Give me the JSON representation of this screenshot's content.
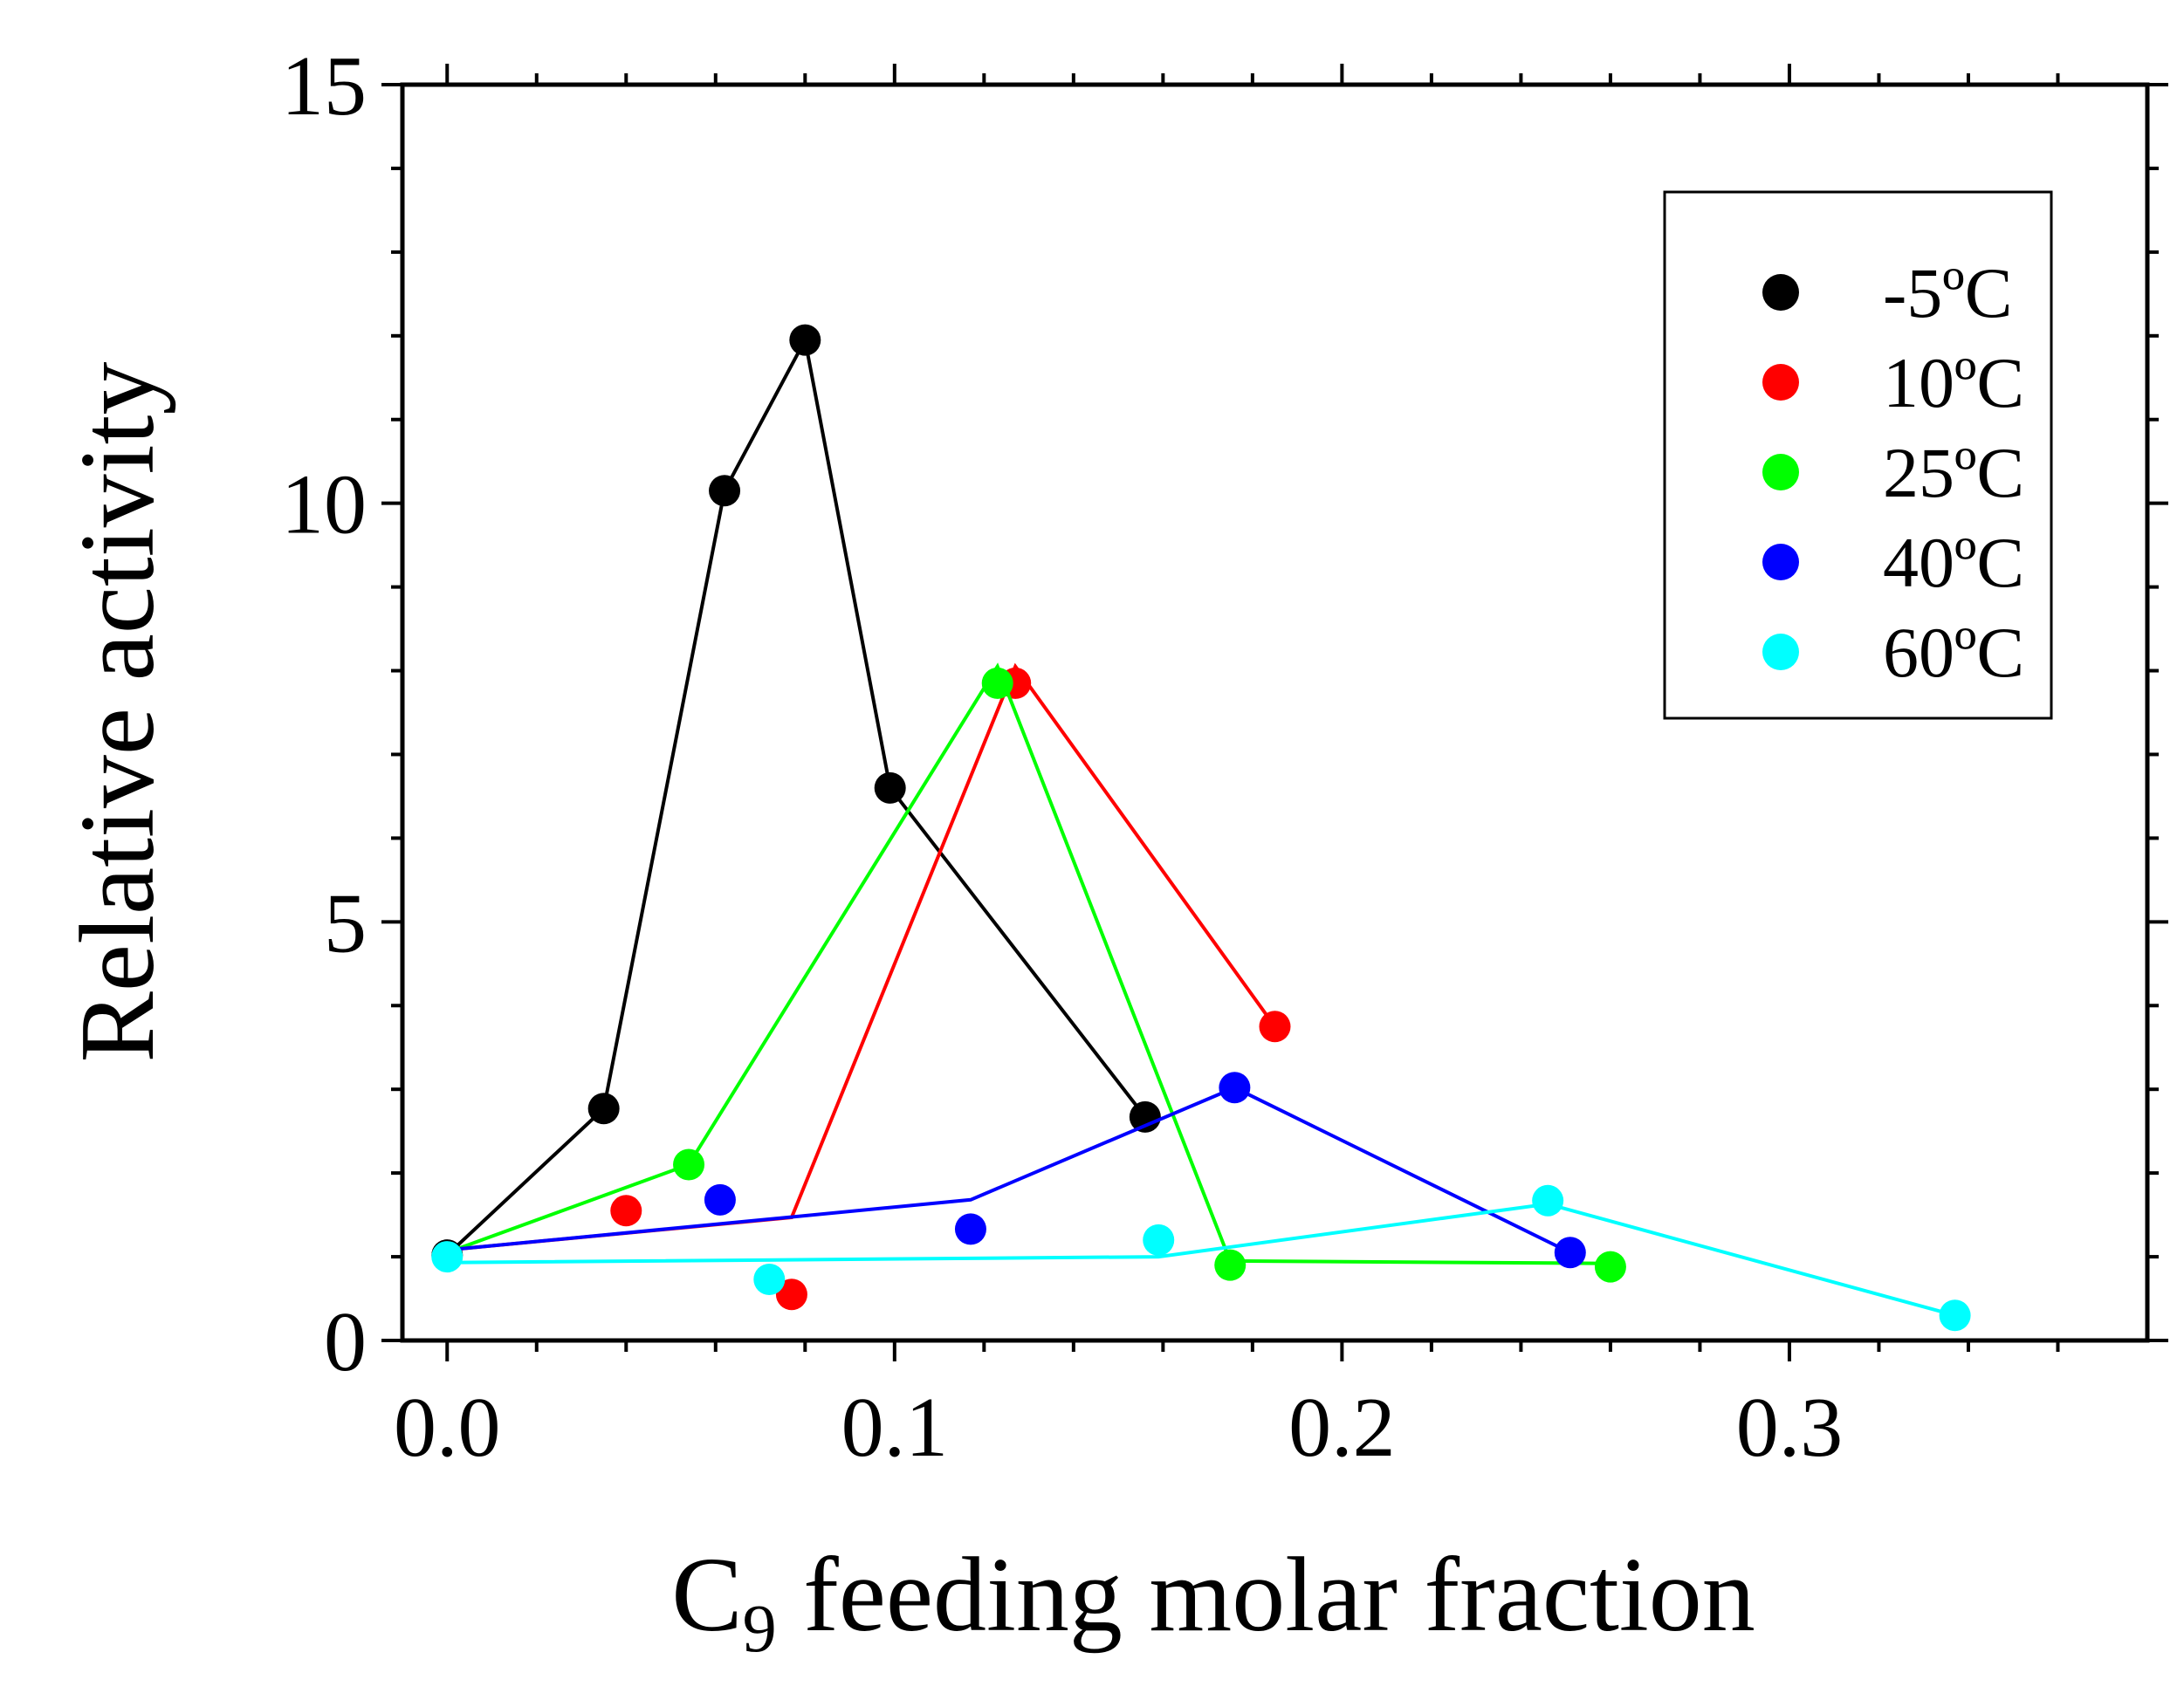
{
  "chart_data": {
    "type": "scatter",
    "title": "",
    "xlabel": {
      "main": "C",
      "subscript": "9",
      "rest": " feeding molar fraction"
    },
    "ylabel": "Relative activity",
    "xlim": [
      -0.01,
      0.38
    ],
    "ylim": [
      0,
      15
    ],
    "x_ticks": [
      0.0,
      0.1,
      0.2,
      0.3
    ],
    "x_tick_labels": [
      "0.0",
      "0.1",
      "0.2",
      "0.3"
    ],
    "x_minor_ticks": [
      0.02,
      0.04,
      0.06,
      0.08,
      0.12,
      0.14,
      0.16,
      0.18,
      0.22,
      0.24,
      0.26,
      0.28,
      0.32,
      0.34,
      0.36
    ],
    "y_ticks": [
      0,
      5,
      10,
      15
    ],
    "y_tick_labels": [
      "0",
      "5",
      "10",
      "15"
    ],
    "y_minor_ticks": [
      1,
      2,
      3,
      4,
      6,
      7,
      8,
      9,
      11,
      12,
      13,
      14
    ],
    "grid": false,
    "legend_position": "top-right",
    "series": [
      {
        "name": "-5ºC",
        "color": "#000000",
        "points": [
          [
            0.0,
            1.02
          ],
          [
            0.035,
            2.77
          ],
          [
            0.062,
            10.15
          ],
          [
            0.08,
            11.95
          ],
          [
            0.099,
            6.6
          ],
          [
            0.156,
            2.67
          ]
        ],
        "line": [
          [
            0.0,
            1.02
          ],
          [
            0.035,
            2.77
          ],
          [
            0.062,
            10.15
          ],
          [
            0.08,
            11.95
          ],
          [
            0.099,
            6.6
          ],
          [
            0.156,
            2.67
          ]
        ]
      },
      {
        "name": "10ºC",
        "color": "#ff0000",
        "points": [
          [
            0.04,
            1.55
          ],
          [
            0.077,
            0.55
          ],
          [
            0.127,
            7.85
          ],
          [
            0.185,
            3.75
          ]
        ],
        "line": [
          [
            0.0,
            1.08
          ],
          [
            0.077,
            1.47
          ],
          [
            0.127,
            8.05
          ],
          [
            0.185,
            3.75
          ]
        ]
      },
      {
        "name": "25ºC",
        "color": "#00ff00",
        "points": [
          [
            0.054,
            2.1
          ],
          [
            0.123,
            7.85
          ],
          [
            0.175,
            0.9
          ],
          [
            0.26,
            0.88
          ]
        ],
        "line": [
          [
            0.0,
            1.05
          ],
          [
            0.054,
            2.1
          ],
          [
            0.123,
            8.05
          ],
          [
            0.175,
            0.95
          ],
          [
            0.26,
            0.92
          ]
        ]
      },
      {
        "name": "40ºC",
        "color": "#0000ff",
        "points": [
          [
            0.061,
            1.68
          ],
          [
            0.117,
            1.33
          ],
          [
            0.176,
            3.02
          ],
          [
            0.251,
            1.05
          ]
        ],
        "line": [
          [
            0.0,
            1.08
          ],
          [
            0.117,
            1.68
          ],
          [
            0.176,
            3.02
          ],
          [
            0.251,
            1.05
          ]
        ]
      },
      {
        "name": "60ºC",
        "color": "#00ffff",
        "points": [
          [
            0.0,
            1.0
          ],
          [
            0.072,
            0.73
          ],
          [
            0.159,
            1.2
          ],
          [
            0.246,
            1.67
          ],
          [
            0.337,
            0.3
          ]
        ],
        "line": [
          [
            0.0,
            0.93
          ],
          [
            0.159,
            1.0
          ],
          [
            0.246,
            1.63
          ],
          [
            0.337,
            0.3
          ]
        ]
      }
    ]
  }
}
